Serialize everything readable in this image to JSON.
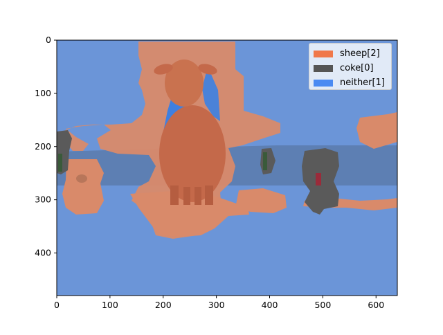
{
  "image": {
    "subject": "overlay segmentation plot",
    "x_ticks": [
      "0",
      "100",
      "200",
      "300",
      "400",
      "500",
      "600"
    ],
    "y_ticks": [
      "0",
      "100",
      "200",
      "300",
      "400"
    ],
    "x_range": [
      0,
      640
    ],
    "y_range": [
      0,
      480
    ],
    "colors": {
      "background_blue": "#6b95d8",
      "sheep_region": "#d98a6a",
      "sheep_body": "#c4694a",
      "coke_region": "#5a5a5a",
      "band": "#5d7fb3",
      "neither_patch": "#3f7fe0"
    }
  },
  "legend": {
    "items": [
      {
        "label": "sheep[2]",
        "color": "#f0784a"
      },
      {
        "label": "coke[0]",
        "color": "#555555"
      },
      {
        "label": "neither[1]",
        "color": "#4a8af2"
      }
    ]
  }
}
